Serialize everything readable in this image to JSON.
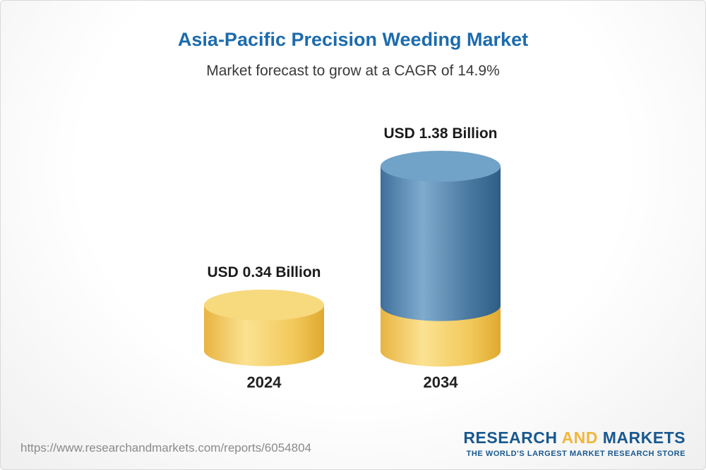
{
  "header": {
    "title": "Asia-Pacific Precision Weeding Market",
    "subtitle": "Market forecast to grow at a CAGR of 14.9%"
  },
  "chart_data": {
    "type": "bar",
    "variant": "3d-cylinder",
    "title": "Asia-Pacific Precision Weeding Market",
    "subtitle": "Market forecast to grow at a CAGR of 14.9%",
    "cagr": "14.9%",
    "unit": "USD Billion",
    "categories": [
      "2024",
      "2034"
    ],
    "values": [
      0.34,
      1.38
    ],
    "value_labels": [
      "USD 0.34 Billion",
      "USD 1.38 Billion"
    ],
    "ylim": [
      0,
      1.5
    ],
    "grid": false,
    "legend": "none",
    "colors": {
      "bar_2024": "#F2C85A",
      "bar_2034_growth": "#4C85AE",
      "bar_2034_base": "#F2C85A"
    }
  },
  "footer": {
    "url": "https://www.researchandmarkets.com/reports/6054804",
    "logo": {
      "word1": "RESEARCH",
      "word2": "AND",
      "word3": "MARKETS",
      "tagline": "THE WORLD'S LARGEST MARKET RESEARCH STORE"
    }
  },
  "colors": {
    "accent_blue": "#1C6BAD",
    "text_dark": "#1B1B1B",
    "url_gray": "#8A8A8A",
    "logo_blue": "#19588F",
    "logo_gold": "#EFB73E"
  }
}
